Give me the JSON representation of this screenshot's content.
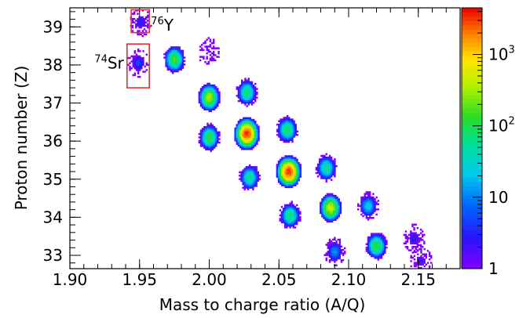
{
  "chart_data": {
    "type": "heatmap",
    "title": "",
    "xlabel": "Mass to charge ratio (A/Q)",
    "ylabel": "Proton number (Z)",
    "xlim": [
      1.9,
      2.18
    ],
    "ylim": [
      32.65,
      39.5
    ],
    "x_ticks": [
      1.9,
      1.95,
      2.0,
      2.05,
      2.1,
      2.15
    ],
    "x_tick_labels": [
      "1.90",
      "1.95",
      "2.00",
      "2.05",
      "2.10",
      "2.15"
    ],
    "y_ticks": [
      33,
      34,
      35,
      36,
      37,
      38,
      39
    ],
    "y_tick_labels": [
      "33",
      "34",
      "35",
      "36",
      "37",
      "38",
      "39"
    ],
    "colorbar": {
      "scale": "log",
      "range": [
        1,
        4500
      ],
      "ticks": [
        1,
        10,
        100,
        1000
      ],
      "tick_labels": [
        {
          "base": "1",
          "exp": ""
        },
        {
          "base": "10",
          "exp": ""
        },
        {
          "base": "10",
          "exp": "2"
        },
        {
          "base": "10",
          "exp": "3"
        }
      ]
    },
    "clusters": [
      {
        "x": 1.951,
        "y": 39.12,
        "peak": 3
      },
      {
        "x": 1.949,
        "y": 38.05,
        "peak": 5
      },
      {
        "x": 1.975,
        "y": 38.15,
        "peak": 150
      },
      {
        "x": 1.9995,
        "y": 38.35,
        "peak": 1
      },
      {
        "x": 2.0,
        "y": 37.15,
        "peak": 350
      },
      {
        "x": 2.0,
        "y": 36.1,
        "peak": 120
      },
      {
        "x": 2.027,
        "y": 37.28,
        "peak": 80
      },
      {
        "x": 2.027,
        "y": 36.2,
        "peak": 3500
      },
      {
        "x": 2.029,
        "y": 35.05,
        "peak": 60
      },
      {
        "x": 2.056,
        "y": 36.3,
        "peak": 90
      },
      {
        "x": 2.057,
        "y": 35.2,
        "peak": 3200
      },
      {
        "x": 2.058,
        "y": 34.05,
        "peak": 70
      },
      {
        "x": 2.084,
        "y": 35.3,
        "peak": 60
      },
      {
        "x": 2.087,
        "y": 34.25,
        "peak": 450
      },
      {
        "x": 2.09,
        "y": 33.1,
        "peak": 12
      },
      {
        "x": 2.114,
        "y": 34.3,
        "peak": 25
      },
      {
        "x": 2.12,
        "y": 33.25,
        "peak": 120
      },
      {
        "x": 2.147,
        "y": 33.45,
        "peak": 3
      },
      {
        "x": 2.152,
        "y": 32.85,
        "peak": 2
      }
    ],
    "annotations": [
      {
        "id": "sr74",
        "mass": "74",
        "symbol": "Sr",
        "box": {
          "x0": 1.941,
          "x1": 1.957,
          "y0": 37.4,
          "y1": 38.55
        }
      },
      {
        "id": "y76",
        "mass": "76",
        "symbol": "Y",
        "box": {
          "x0": 1.944,
          "x1": 1.957,
          "y0": 38.85,
          "y1": 39.45
        }
      }
    ],
    "colors": {
      "highlight_box": "#e03030",
      "axis": "#000000",
      "background": "#ffffff"
    }
  }
}
